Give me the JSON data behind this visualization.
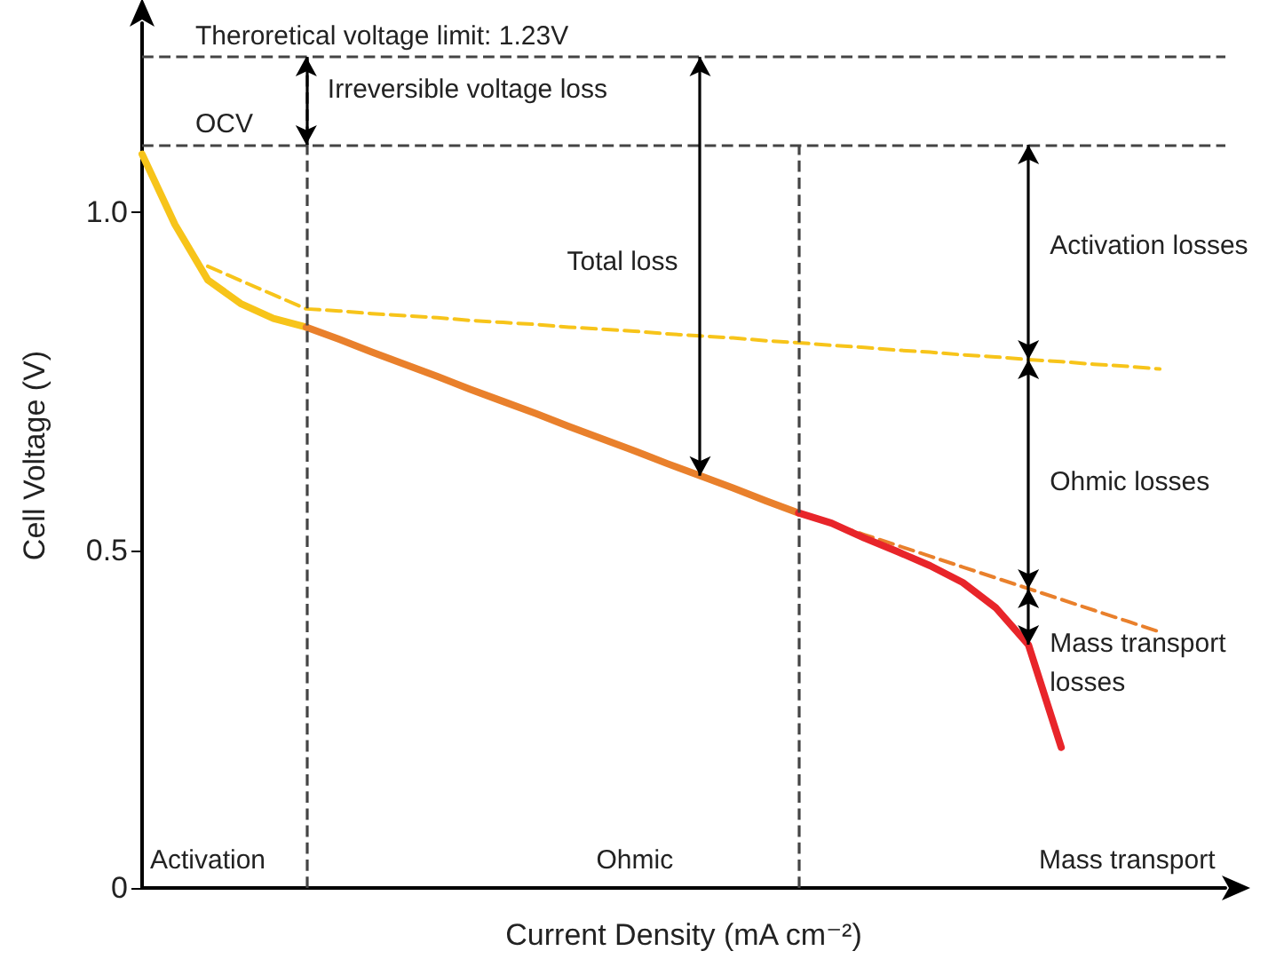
{
  "chart_data": {
    "type": "line",
    "xlabel": "Current Density (mA cm⁻²)",
    "ylabel": "Cell Voltage (V)",
    "categories": [
      null,
      null,
      null,
      null,
      null,
      null,
      null,
      null,
      null,
      null,
      null,
      null,
      null,
      null,
      null,
      null,
      null,
      null,
      null,
      null,
      null,
      null,
      null,
      null,
      null,
      null,
      null,
      null,
      null,
      null,
      null,
      null,
      null,
      null
    ],
    "ylim": [
      0,
      1.28
    ],
    "yticks": [
      0,
      0.5,
      {
        "value": 1,
        "label": "1.0"
      }
    ],
    "tick_labels": "y",
    "marker": "none",
    "series": [
      {
        "color": "#f7c41a",
        "line_style": "solid",
        "values": [
          1.086,
          0.982,
          0.9,
          0.865,
          0.843,
          0.83,
          null,
          null,
          null,
          null,
          null,
          null,
          null,
          null,
          null,
          null,
          null,
          null,
          null,
          null,
          null,
          null,
          null,
          null,
          null,
          null,
          null,
          null,
          null,
          null,
          null,
          null,
          null,
          null
        ]
      },
      {
        "color": "#e9802c",
        "line_style": "solid",
        "values": [
          null,
          null,
          null,
          null,
          null,
          0.83,
          0.812,
          0.793,
          0.775,
          0.757,
          0.738,
          0.72,
          0.702,
          0.683,
          0.665,
          0.647,
          0.628,
          0.61,
          0.592,
          0.573,
          0.555,
          null,
          null,
          null,
          null,
          null,
          null,
          null,
          null,
          null,
          null,
          null,
          null,
          null
        ]
      },
      {
        "color": "#e8252a",
        "line_style": "solid",
        "values": [
          null,
          null,
          null,
          null,
          null,
          null,
          null,
          null,
          null,
          null,
          null,
          null,
          null,
          null,
          null,
          null,
          null,
          null,
          null,
          null,
          0.555,
          0.54,
          0.518,
          0.498,
          0.477,
          0.452,
          0.415,
          0.36,
          0.208,
          null,
          null,
          null,
          null,
          null
        ]
      },
      {
        "color": "#f7c41a",
        "line_style": "dashed",
        "values": [
          null,
          null,
          0.92,
          0.899,
          0.878,
          0.857,
          0.854,
          0.85,
          0.847,
          0.844,
          0.84,
          0.837,
          0.834,
          0.83,
          0.827,
          0.824,
          0.82,
          0.817,
          0.814,
          0.81,
          0.807,
          0.803,
          0.8,
          0.796,
          0.793,
          0.789,
          0.786,
          0.782,
          0.779,
          0.775,
          0.772,
          0.768,
          null,
          null
        ]
      },
      {
        "color": "#e9802c",
        "line_style": "dashed",
        "values": [
          null,
          null,
          null,
          null,
          null,
          null,
          null,
          null,
          null,
          null,
          null,
          null,
          null,
          null,
          null,
          null,
          null,
          null,
          null,
          null,
          0.555,
          0.539,
          0.523,
          0.507,
          0.491,
          0.475,
          0.459,
          0.443,
          0.427,
          0.411,
          0.395,
          0.379,
          null,
          null
        ]
      }
    ],
    "ref_lines": [
      {
        "axis": "y",
        "value": 1.23,
        "label": "Theroretical voltage limit: 1.23V",
        "color": "#444444",
        "line_style": "dashed"
      },
      {
        "axis": "y",
        "value": 1.1,
        "label": "OCV",
        "color": "#444444",
        "line_style": "dashed"
      }
    ],
    "annotations": [
      "Irreversible voltage loss",
      "Total loss",
      "Activation losses",
      "Ohmic losses",
      "Mass transport losses",
      "Activation",
      "Ohmic",
      "Mass transport"
    ]
  }
}
